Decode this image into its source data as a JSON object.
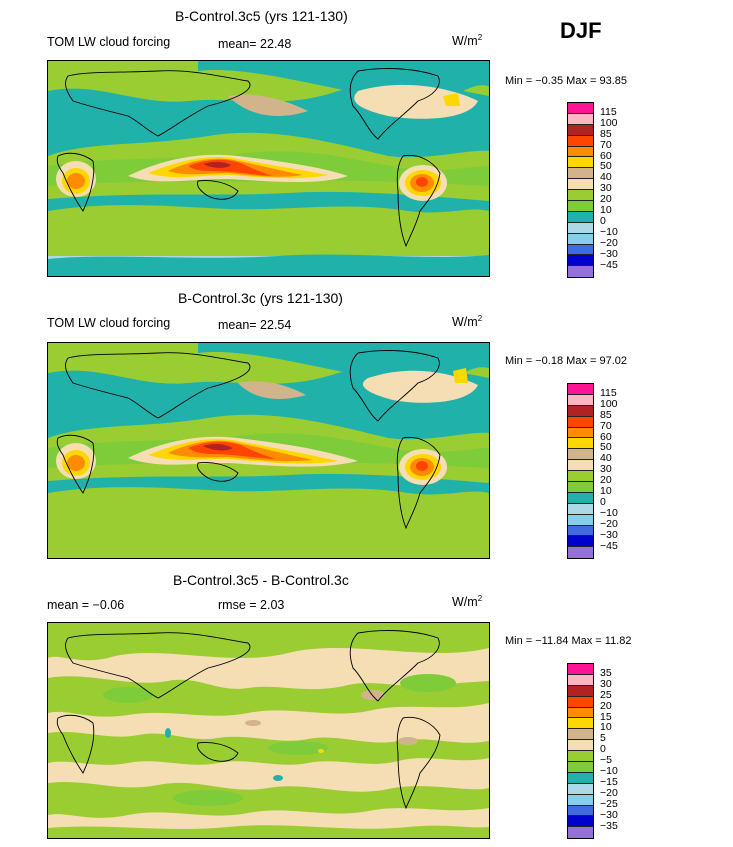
{
  "season": "DJF",
  "panels": [
    {
      "title": "B-Control.3c5 (yrs 121-130)",
      "variable": "TOM LW cloud forcing",
      "stat1": "mean=  22.48",
      "stat2": "",
      "units": "W/m",
      "units_sup": "2",
      "minmax": "Min =   −0.35  Max =   93.85",
      "levels": [
        "115",
        "100",
        "85",
        "70",
        "60",
        "50",
        "40",
        "30",
        "20",
        "10",
        "0",
        "−10",
        "−20",
        "−30",
        "−45"
      ],
      "colors": [
        "#ff1493",
        "#ffb6c1",
        "#b22222",
        "#ff4500",
        "#ff8c00",
        "#ffd700",
        "#d2b48c",
        "#f5deb3",
        "#9acd32",
        "#7fcc3a",
        "#20b2aa",
        "#add8e6",
        "#87ceeb",
        "#4169e1",
        "#0000cd",
        "#9370db"
      ],
      "base_color": "#9acd32"
    },
    {
      "title": "B-Control.3c (yrs 121-130)",
      "variable": "TOM LW cloud forcing",
      "stat1": "mean=  22.54",
      "stat2": "",
      "units": "W/m",
      "units_sup": "2",
      "minmax": "Min =   −0.18  Max =   97.02",
      "levels": [
        "115",
        "100",
        "85",
        "70",
        "60",
        "50",
        "40",
        "30",
        "20",
        "10",
        "0",
        "−10",
        "−20",
        "−30",
        "−45"
      ],
      "colors": [
        "#ff1493",
        "#ffb6c1",
        "#b22222",
        "#ff4500",
        "#ff8c00",
        "#ffd700",
        "#d2b48c",
        "#f5deb3",
        "#9acd32",
        "#7fcc3a",
        "#20b2aa",
        "#add8e6",
        "#87ceeb",
        "#4169e1",
        "#0000cd",
        "#9370db"
      ],
      "base_color": "#9acd32"
    },
    {
      "title": "B-Control.3c5 - B-Control.3c",
      "variable": "",
      "stat1": "mean =   −0.06",
      "stat2": "rmse =    2.03",
      "units": "W/m",
      "units_sup": "2",
      "minmax": "Min =  −11.84  Max =   11.82",
      "levels": [
        "35",
        "30",
        "25",
        "20",
        "15",
        "10",
        "5",
        "0",
        "−5",
        "−10",
        "−15",
        "−20",
        "−25",
        "−30",
        "−35"
      ],
      "colors": [
        "#ff1493",
        "#ffb6c1",
        "#b22222",
        "#ff4500",
        "#ff8c00",
        "#ffd700",
        "#d2b48c",
        "#f5deb3",
        "#9acd32",
        "#7fcc3a",
        "#20b2aa",
        "#add8e6",
        "#87ceeb",
        "#4169e1",
        "#0000cd",
        "#9370db"
      ],
      "base_color": "#f5deb3"
    }
  ]
}
